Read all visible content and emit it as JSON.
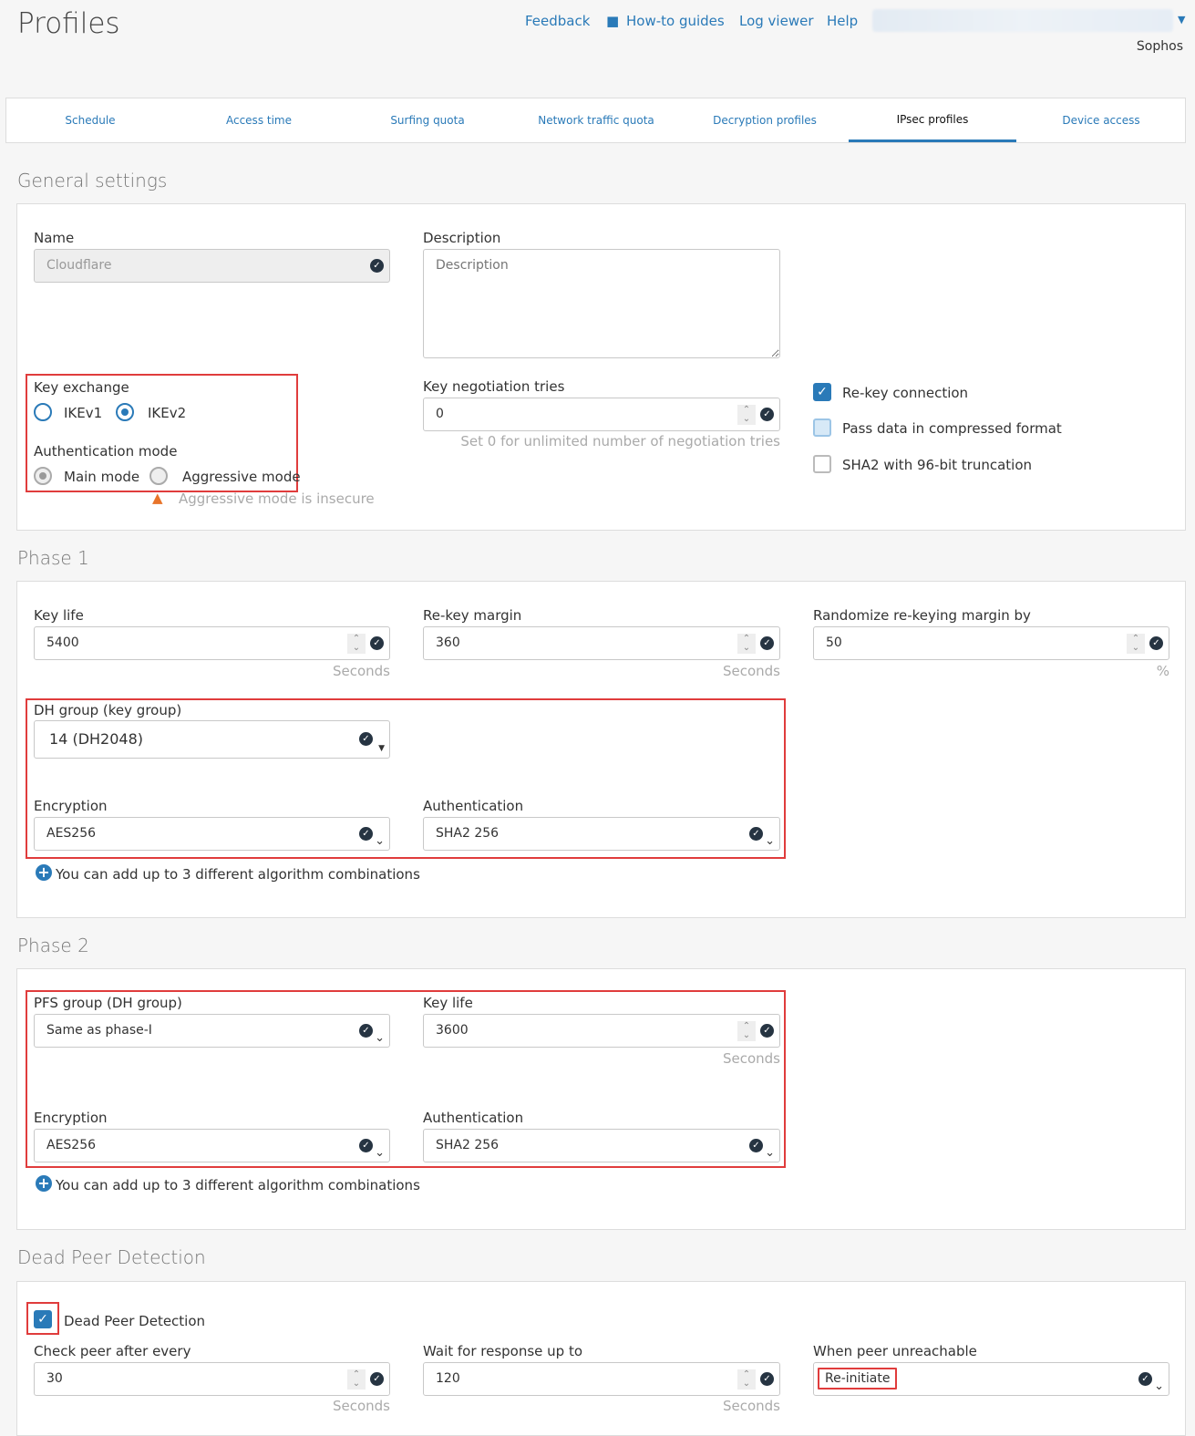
{
  "header": {
    "title": "Profiles",
    "links": [
      "Feedback",
      "How-to guides",
      "Log viewer",
      "Help"
    ],
    "org": "Sophos"
  },
  "tabs": [
    {
      "label": "Schedule"
    },
    {
      "label": "Access time"
    },
    {
      "label": "Surfing quota"
    },
    {
      "label": "Network traffic quota"
    },
    {
      "label": "Decryption profiles"
    },
    {
      "label": "IPsec profiles",
      "active": true
    },
    {
      "label": "Device access"
    }
  ],
  "general": {
    "title": "General settings",
    "name_label": "Name",
    "name_value": "Cloudflare",
    "desc_label": "Description",
    "desc_placeholder": "Description",
    "key_exchange_label": "Key exchange",
    "ikev1": "IKEv1",
    "ikev2": "IKEv2",
    "key_exchange_selected": "IKEv2",
    "auth_mode_label": "Authentication mode",
    "main_mode": "Main mode",
    "aggressive_mode": "Aggressive mode",
    "auth_mode_selected": "Main mode",
    "aggressive_warning": "Aggressive mode is insecure",
    "key_neg_label": "Key negotiation tries",
    "key_neg_value": "0",
    "key_neg_hint": "Set 0 for unlimited number of negotiation tries",
    "rekey": {
      "label": "Re-key connection",
      "checked": true
    },
    "compress": {
      "label": "Pass data in compressed format",
      "checked": false
    },
    "sha2": {
      "label": "SHA2 with 96-bit truncation",
      "checked": false
    }
  },
  "phase1": {
    "title": "Phase 1",
    "key_life_label": "Key life",
    "key_life": "5400",
    "rekey_margin_label": "Re-key margin",
    "rekey_margin": "360",
    "randomize_label": "Randomize re-keying margin by",
    "randomize": "50",
    "seconds": "Seconds",
    "percent": "%",
    "dh_label": "DH group (key group)",
    "dh_value": "14 (DH2048)",
    "enc_label": "Encryption",
    "enc_value": "AES256",
    "auth_label": "Authentication",
    "auth_value": "SHA2 256",
    "add_note": "You can add up to 3 different algorithm combinations"
  },
  "phase2": {
    "title": "Phase 2",
    "pfs_label": "PFS group (DH group)",
    "pfs_value": "Same as phase-I",
    "key_life_label": "Key life",
    "key_life": "3600",
    "seconds": "Seconds",
    "enc_label": "Encryption",
    "enc_value": "AES256",
    "auth_label": "Authentication",
    "auth_value": "SHA2 256",
    "add_note": "You can add up to 3 different algorithm combinations"
  },
  "dpd": {
    "title": "Dead Peer Detection",
    "enable_label": "Dead Peer Detection",
    "enabled": true,
    "check_label": "Check peer after every",
    "check_value": "30",
    "wait_label": "Wait for response up to",
    "wait_value": "120",
    "seconds": "Seconds",
    "unreach_label": "When peer unreachable",
    "unreach_value": "Re-initiate"
  },
  "colors": {
    "accent": "#2a7ab8",
    "highlight": "#e03c3c"
  }
}
